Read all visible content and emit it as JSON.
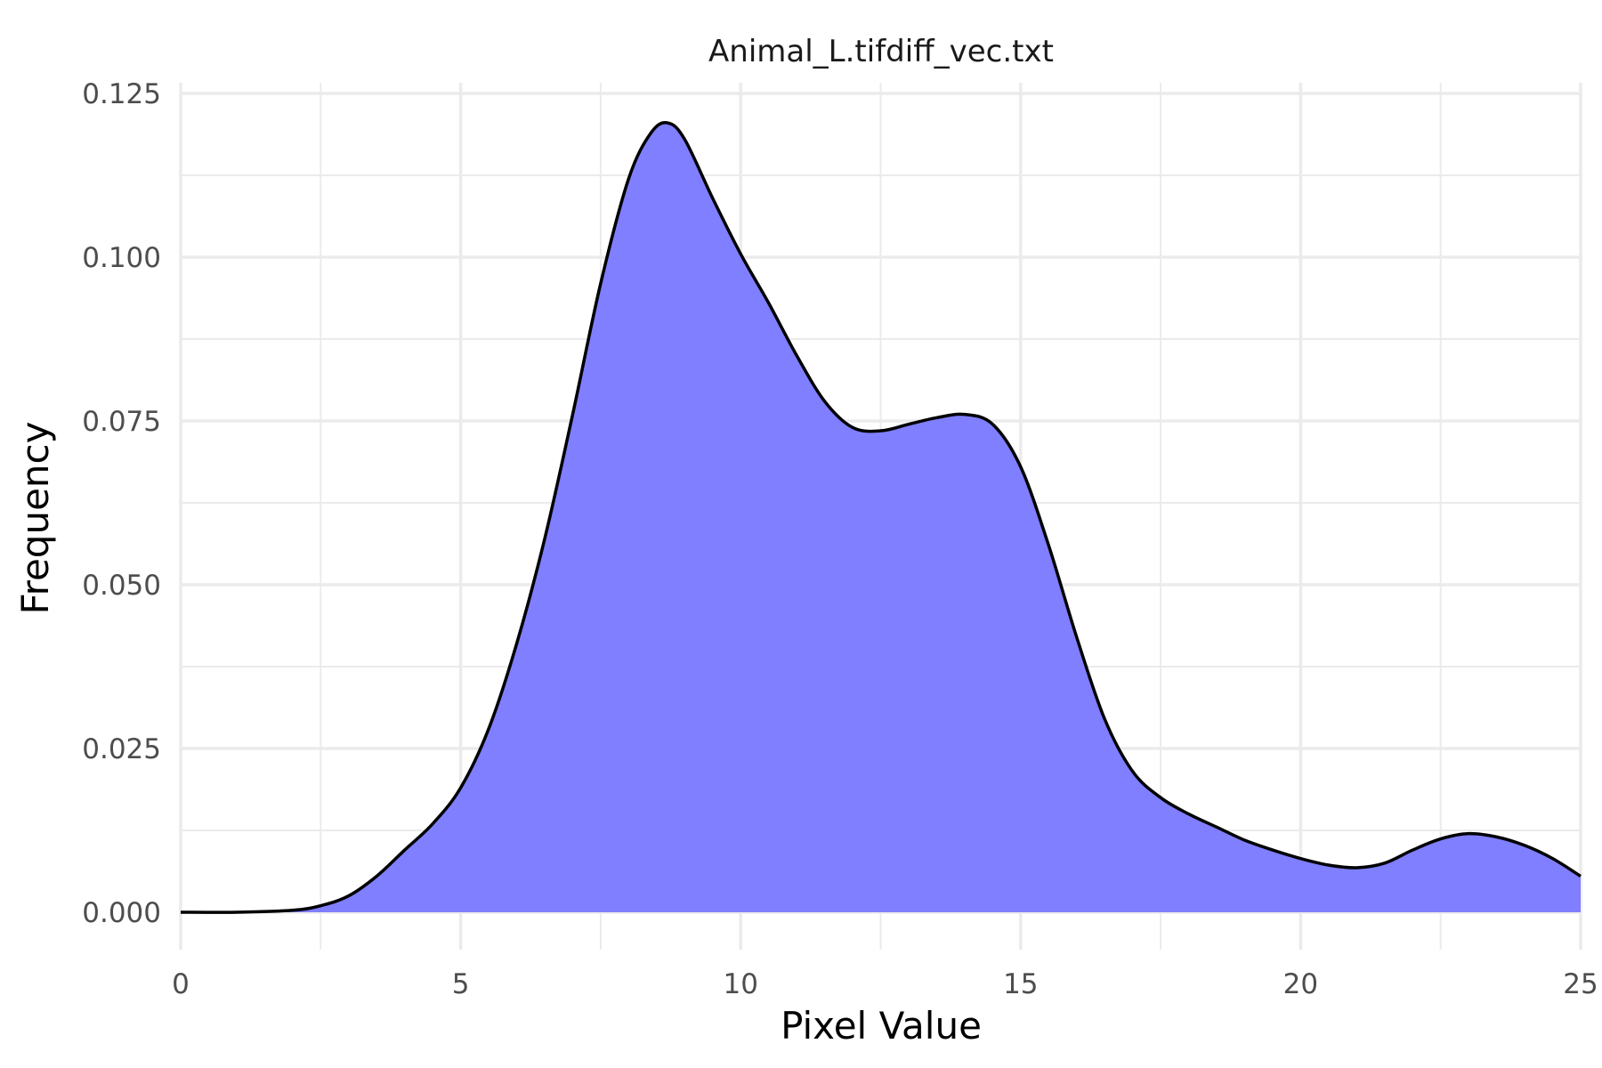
{
  "chart_data": {
    "type": "area",
    "title": "Animal_L.tifdiff_vec.txt",
    "xlabel": "Pixel Value",
    "ylabel": "Frequency",
    "xlim": [
      0,
      25
    ],
    "ylim": [
      0,
      0.125
    ],
    "x_ticks": [
      0,
      5,
      10,
      15,
      20,
      25
    ],
    "y_ticks": [
      0,
      0.025,
      0.05,
      0.075,
      0.1,
      0.125
    ],
    "x_tick_labels": [
      "0",
      "5",
      "10",
      "15",
      "20",
      "25"
    ],
    "y_tick_labels": [
      "0.000",
      "0.025",
      "0.050",
      "0.075",
      "0.100",
      "0.125"
    ],
    "grid": true,
    "legend": "none",
    "fill_color": "#7f7fff",
    "line_color": "#000000",
    "series": [
      {
        "x": [
          0,
          1,
          2,
          2.5,
          3,
          3.5,
          4,
          4.5,
          5,
          5.5,
          6,
          6.5,
          7,
          7.5,
          8,
          8.4,
          8.7,
          9,
          9.5,
          10,
          10.5,
          11,
          11.5,
          12,
          12.5,
          13,
          13.5,
          14,
          14.5,
          15,
          15.5,
          16,
          16.5,
          17,
          17.5,
          18,
          18.5,
          19,
          19.5,
          20,
          20.5,
          21,
          21.5,
          22,
          22.5,
          23,
          23.5,
          24,
          24.5,
          25
        ],
        "y": [
          0,
          0,
          0.0003,
          0.001,
          0.0025,
          0.0055,
          0.0095,
          0.0135,
          0.019,
          0.028,
          0.041,
          0.057,
          0.076,
          0.096,
          0.112,
          0.119,
          0.1205,
          0.118,
          0.109,
          0.1005,
          0.093,
          0.085,
          0.078,
          0.074,
          0.0735,
          0.0745,
          0.0755,
          0.076,
          0.0745,
          0.068,
          0.056,
          0.042,
          0.0295,
          0.0215,
          0.0175,
          0.015,
          0.013,
          0.011,
          0.0095,
          0.0082,
          0.0072,
          0.0068,
          0.0075,
          0.0095,
          0.0112,
          0.012,
          0.0115,
          0.0102,
          0.0082,
          0.0055
        ]
      }
    ]
  }
}
